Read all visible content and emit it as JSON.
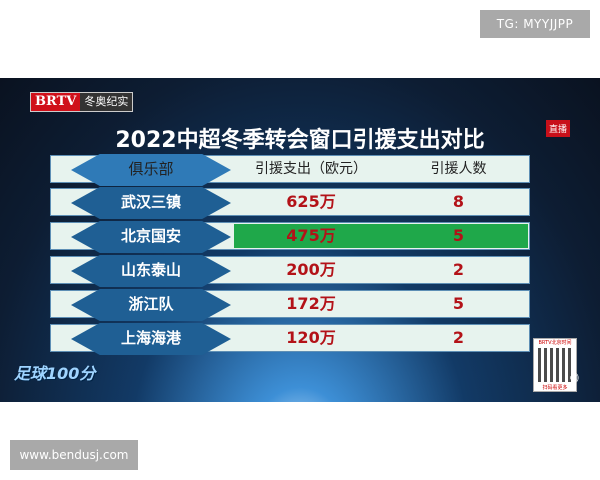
{
  "watermarks": {
    "top": "TG: MYYJJPP",
    "bottom": "www.bendusj.com"
  },
  "broadcast": {
    "channel_logo": "BRTV",
    "channel_name": "冬奥纪实",
    "live_badge": "直播",
    "show_logo": "足球100分",
    "qr_label": "BRTV北京时间",
    "qr_caption": "扫码看更多"
  },
  "table": {
    "title": "2022中超冬季转会窗口引援支出对比",
    "headers": [
      "俱乐部",
      "引援支出（欧元）",
      "引援人数"
    ],
    "rows": [
      {
        "club": "武汉三镇",
        "spend": "625万",
        "count": "8",
        "highlight": false
      },
      {
        "club": "北京国安",
        "spend": "475万",
        "count": "5",
        "highlight": true
      },
      {
        "club": "山东泰山",
        "spend": "200万",
        "count": "2",
        "highlight": false
      },
      {
        "club": "浙江队",
        "spend": "172万",
        "count": "5",
        "highlight": false
      },
      {
        "club": "上海海港",
        "spend": "120万",
        "count": "2",
        "highlight": false
      }
    ],
    "highlight_color": "#1fa84a",
    "value_color": "#b31218"
  }
}
